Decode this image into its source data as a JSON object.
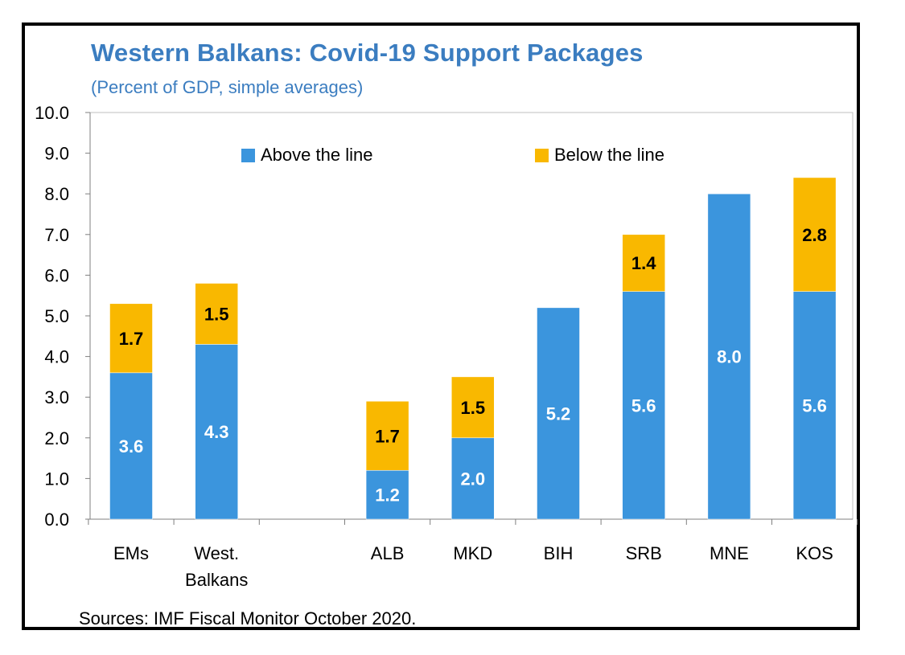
{
  "title": "Western Balkans: Covid-19 Support Packages",
  "subtitle": "(Percent of GDP, simple averages)",
  "source": "Sources: IMF Fiscal Monitor October 2020.",
  "colors": {
    "above": "#3b95dd",
    "below": "#f9b800",
    "title": "#3b7dc0"
  },
  "chart_data": {
    "type": "bar",
    "stacked": true,
    "categories": [
      "EMs",
      "West. Balkans",
      "",
      "ALB",
      "MKD",
      "BIH",
      "SRB",
      "MNE",
      "KOS"
    ],
    "category_lines": [
      [
        "EMs"
      ],
      [
        "West.",
        "Balkans"
      ],
      [],
      [
        "ALB"
      ],
      [
        "MKD"
      ],
      [
        "BIH"
      ],
      [
        "SRB"
      ],
      [
        "MNE"
      ],
      [
        "KOS"
      ]
    ],
    "series": [
      {
        "name": "Above the line",
        "color": "#3b95dd",
        "values": [
          3.6,
          4.3,
          null,
          1.2,
          2.0,
          5.2,
          5.6,
          8.0,
          5.6
        ],
        "labels": [
          "3.6",
          "4.3",
          "",
          "1.2",
          "2.0",
          "5.2",
          "5.6",
          "8.0",
          "5.6"
        ]
      },
      {
        "name": "Below the line",
        "color": "#f9b800",
        "values": [
          1.7,
          1.5,
          null,
          1.7,
          1.5,
          0,
          1.4,
          0,
          2.8
        ],
        "labels": [
          "1.7",
          "1.5",
          "",
          "1.7",
          "1.5",
          "",
          "1.4",
          "",
          "2.8"
        ]
      }
    ],
    "ylim": [
      0,
      10
    ],
    "yticks": [
      "0.0",
      "1.0",
      "2.0",
      "3.0",
      "4.0",
      "5.0",
      "6.0",
      "7.0",
      "8.0",
      "9.0",
      "10.0"
    ],
    "legend_position": "top",
    "grid": false
  }
}
